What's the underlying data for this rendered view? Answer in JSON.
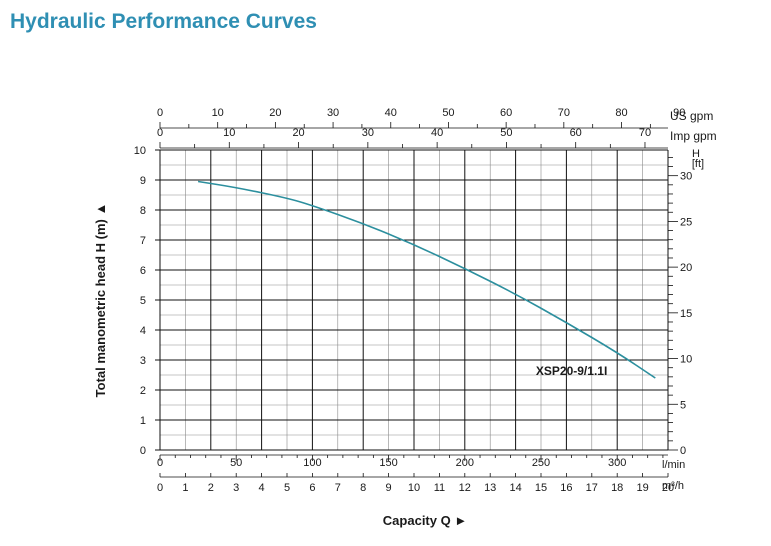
{
  "chart_data": {
    "type": "line",
    "title": "Hydraulic Performance Curves",
    "ylabel": "Total manometric head H (m)",
    "xlabel": "Capacity Q",
    "y_unit_right": "H\n[ft]",
    "ylim": [
      0,
      10
    ],
    "y_ticks": [
      "0",
      "1",
      "2",
      "3",
      "4",
      "5",
      "6",
      "7",
      "8",
      "9",
      "10"
    ],
    "y_ft_ticks": [
      "0",
      "5",
      "10",
      "15",
      "20",
      "25",
      "30"
    ],
    "xlim_m3h": [
      0,
      20
    ],
    "x_axes": [
      {
        "unit": "US gpm",
        "ticks": [
          "0",
          "10",
          "20",
          "30",
          "40",
          "50",
          "60",
          "70",
          "80",
          "90"
        ]
      },
      {
        "unit": "Imp gpm",
        "ticks": [
          "0",
          "10",
          "20",
          "30",
          "40",
          "50",
          "60",
          "70"
        ]
      },
      {
        "unit": "l/min",
        "ticks": [
          "0",
          "50",
          "100",
          "150",
          "200",
          "250",
          "300"
        ]
      },
      {
        "unit": "m³/h",
        "ticks": [
          "0",
          "1",
          "2",
          "3",
          "4",
          "5",
          "6",
          "7",
          "8",
          "9",
          "10",
          "11",
          "12",
          "13",
          "14",
          "15",
          "16",
          "17",
          "18",
          "19",
          "20"
        ]
      }
    ],
    "series": [
      {
        "name": "XSP20-9/1.1I",
        "x": [
          1.5,
          3,
          5,
          6,
          8,
          10,
          12,
          14,
          16,
          18,
          19.5
        ],
        "y": [
          8.95,
          8.75,
          8.4,
          8.15,
          7.55,
          6.85,
          6.05,
          5.2,
          4.25,
          3.25,
          2.4
        ]
      }
    ],
    "grid": true,
    "legend_position": "inline"
  },
  "markers": {
    "y_arrow": "▲",
    "x_arrow": "►"
  }
}
